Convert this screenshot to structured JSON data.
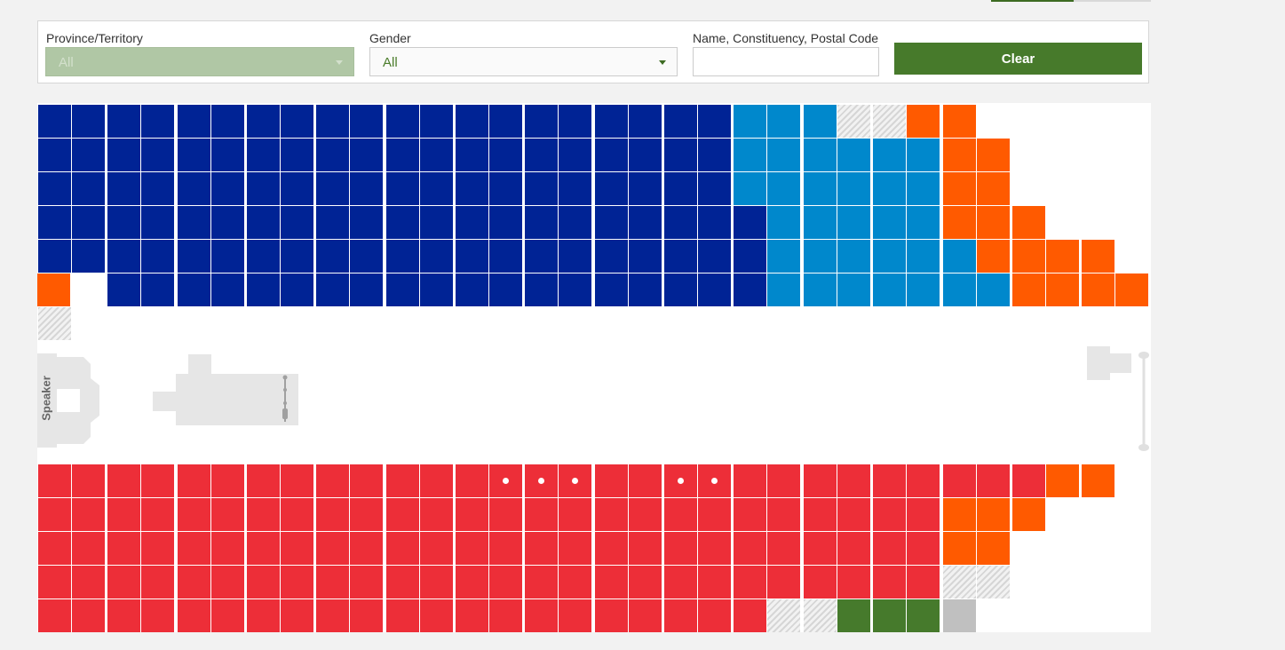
{
  "filters": {
    "province": {
      "label": "Province/Territory",
      "value": "All"
    },
    "gender": {
      "label": "Gender",
      "value": "All"
    },
    "search": {
      "label": "Name, Constituency, Postal Code",
      "value": "",
      "placeholder": ""
    },
    "clear_label": "Clear"
  },
  "chamber": {
    "speaker_label": "Speaker",
    "colors": {
      "dark_blue": "#002395",
      "light_blue": "#0088cc",
      "orange": "#ff5a00",
      "red": "#ed2e38",
      "green": "#467a2c",
      "gray": "#c0c0c0",
      "vacant_hatched": "#d9d9d9"
    },
    "top_block": {
      "rows": [
        "DDDDDDDDDDDDDDDDDDDDBBBVVOO",
        "DDDDDDDDDDDDDDDDDDDDBBBBBBOO",
        "DDDDDDDDDDDDDDDDDDDDBBBBBBOO",
        "DDDDDDDDDDDDDDDDDDDDDBBBBBOOO",
        "DDDDDDDDDDDDDDDDDDDDDBBBBBBOOOO",
        "..DDDDDDDDDDDDDDDDDDDBBBBBBBOOOOOO"
      ],
      "extra": [
        "V"
      ]
    },
    "bottom_block": {
      "rows": [
        "RRRRRRRRRRRRRRRRRRRRRRRRRRRRROO",
        "RRRRRRRRRRRRRRRRRRRRRRRRRROOO",
        "RRRRRRRRRRRRRRRRRRRRRRRRRROO",
        "RRRRRRRRRRRRRRRRRRRRRRRRRRVV",
        "RRRRRRRRRRRRRRRRRRRRRVVGGGg"
      ],
      "dot_seats": [
        13,
        14,
        15,
        18,
        19
      ]
    },
    "legend": {
      "D": "dark_blue",
      "B": "light_blue",
      "O": "orange",
      "R": "red",
      "G": "green",
      "g": "gray",
      "V": "vacant_hatched"
    }
  }
}
